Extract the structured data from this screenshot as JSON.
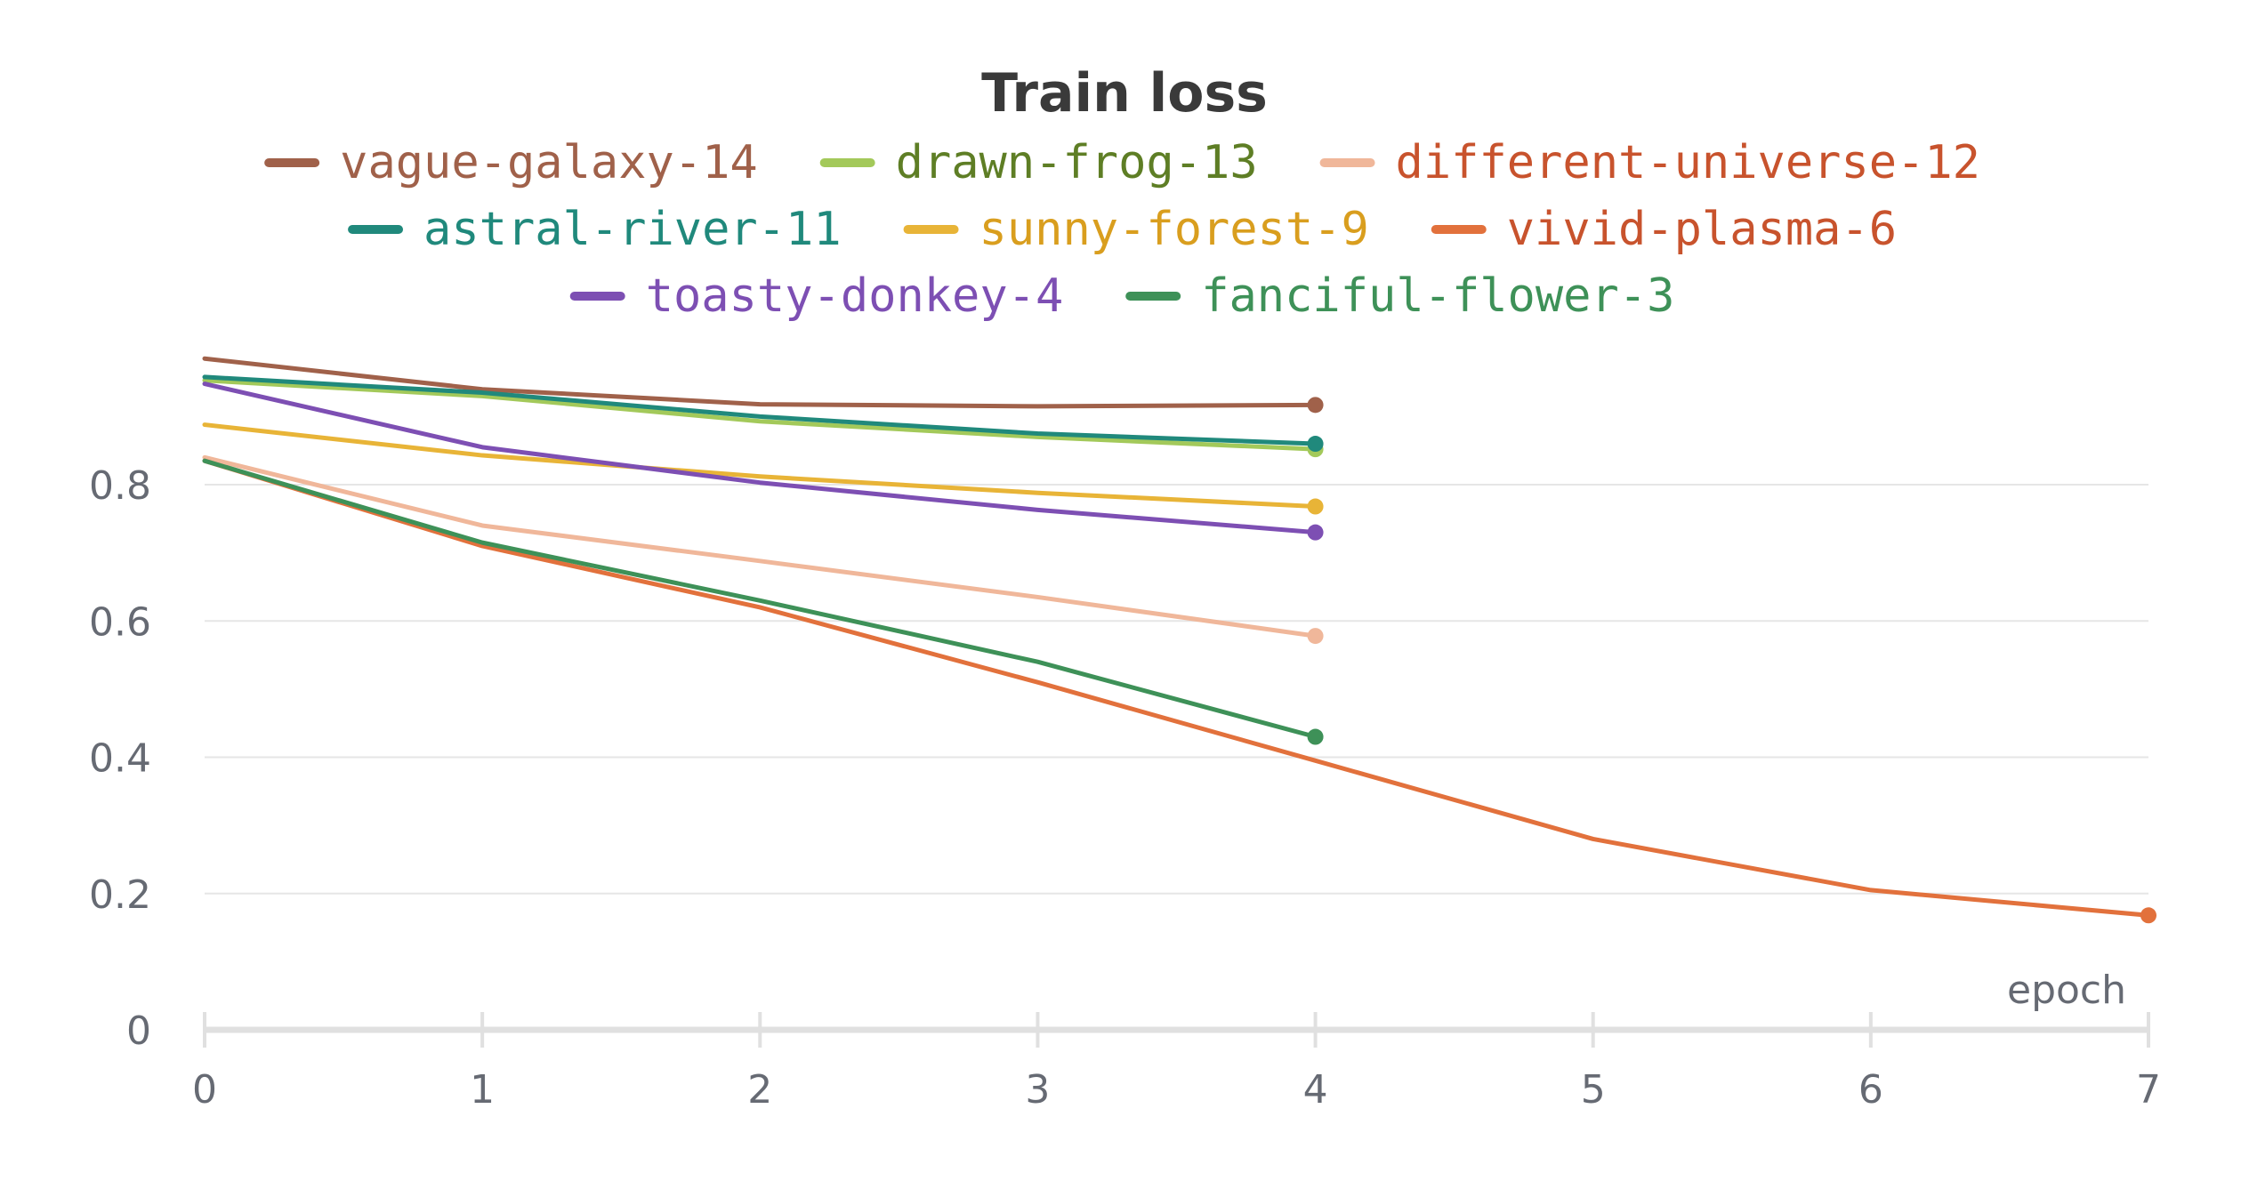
{
  "chart_data": {
    "type": "line",
    "title": "Train loss",
    "xlabel": "epoch",
    "ylabel": "",
    "xlim": [
      0,
      7
    ],
    "ylim": [
      0,
      1.0
    ],
    "x_ticks": [
      "0",
      "1",
      "2",
      "3",
      "4",
      "5",
      "6",
      "7"
    ],
    "y_ticks": [
      "0",
      "0.2",
      "0.4",
      "0.6",
      "0.8"
    ],
    "grid": "horizontal",
    "legend_position": "top",
    "series": [
      {
        "name": "vague-galaxy-14",
        "color": "#a0614a",
        "x": [
          0,
          1,
          2,
          3,
          4
        ],
        "y": [
          0.985,
          0.94,
          0.918,
          0.915,
          0.917
        ]
      },
      {
        "name": "drawn-frog-13",
        "color": "#a3c95a",
        "x": [
          0,
          1,
          2,
          3,
          4
        ],
        "y": [
          0.953,
          0.93,
          0.893,
          0.87,
          0.852
        ]
      },
      {
        "name": "different-universe-12",
        "color": "#f0b79a",
        "x": [
          0,
          1,
          2,
          3,
          4
        ],
        "y": [
          0.84,
          0.74,
          0.688,
          0.635,
          0.578
        ]
      },
      {
        "name": "astral-river-11",
        "color": "#20897c",
        "x": [
          0,
          1,
          2,
          3,
          4
        ],
        "y": [
          0.958,
          0.935,
          0.9,
          0.875,
          0.86
        ]
      },
      {
        "name": "sunny-forest-9",
        "color": "#e8b437",
        "x": [
          0,
          1,
          2,
          3,
          4
        ],
        "y": [
          0.888,
          0.843,
          0.812,
          0.788,
          0.768
        ]
      },
      {
        "name": "vivid-plasma-6",
        "color": "#e2713c",
        "x": [
          0,
          1,
          2,
          3,
          4,
          5,
          6,
          7
        ],
        "y": [
          0.835,
          0.71,
          0.62,
          0.51,
          0.395,
          0.28,
          0.205,
          0.168
        ]
      },
      {
        "name": "toasty-donkey-4",
        "color": "#7d4fb3",
        "x": [
          0,
          1,
          2,
          3,
          4
        ],
        "y": [
          0.948,
          0.855,
          0.803,
          0.763,
          0.73
        ]
      },
      {
        "name": "fanciful-flower-3",
        "color": "#3e9158",
        "x": [
          0,
          1,
          2,
          3,
          4
        ],
        "y": [
          0.835,
          0.715,
          0.63,
          0.54,
          0.43
        ]
      }
    ],
    "legend_text_colors": [
      "#a0614a",
      "#5e7e25",
      "#c8532d",
      "#20897c",
      "#d99e1e",
      "#c8532d",
      "#7d4fb3",
      "#3e9158"
    ]
  }
}
